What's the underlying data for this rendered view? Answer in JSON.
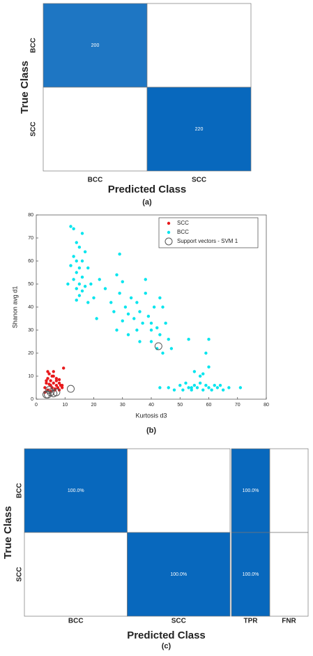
{
  "chart_data": [
    {
      "type": "confusion_matrix",
      "caption": "(a)",
      "xlabel": "Predicted Class",
      "ylabel": "True Class",
      "rows": [
        "BCC",
        "SCC"
      ],
      "columns": [
        "BCC",
        "SCC"
      ],
      "values": [
        [
          200,
          null
        ],
        [
          null,
          220
        ]
      ],
      "color": "#0868bd"
    },
    {
      "type": "scatter",
      "caption": "(b)",
      "xlabel": "Kurtosis d3",
      "ylabel": "Shanon avg d1",
      "xlim": [
        0,
        80
      ],
      "xticks": [
        0,
        10,
        20,
        30,
        40,
        50,
        60,
        70,
        80
      ],
      "ylim": [
        0,
        80
      ],
      "yticks": [
        0,
        10,
        20,
        30,
        40,
        50,
        60,
        70,
        80
      ],
      "legend": "northeast",
      "series": [
        {
          "name": "SCC",
          "color": "#e8191c",
          "marker": "dot",
          "x": [
            3,
            3.5,
            4,
            4,
            4.5,
            5,
            5,
            5.5,
            6,
            6,
            6.5,
            7,
            7,
            7.5,
            8,
            8,
            8.5,
            9,
            9.5,
            3,
            4,
            5,
            6,
            7,
            8,
            4.5,
            5.5,
            6.5,
            3.5,
            9
          ],
          "values": [
            5,
            7,
            4,
            9,
            11,
            6,
            8,
            5,
            7,
            10,
            4,
            6,
            9,
            5,
            7,
            4,
            6,
            5,
            13.5,
            3,
            12,
            3.5,
            12,
            8,
            8.5,
            6.5,
            10,
            4.5,
            8,
            6
          ]
        },
        {
          "name": "BCC",
          "color": "#00e5ee",
          "marker": "dot",
          "x": [
            12,
            13,
            16,
            14,
            15,
            17,
            13,
            14,
            16,
            12,
            15,
            18,
            14,
            16,
            13,
            11,
            15,
            17,
            14,
            16,
            15,
            14,
            19,
            18,
            29,
            22,
            20,
            21,
            24,
            26,
            27,
            28,
            29,
            30,
            31,
            32,
            33,
            34,
            35,
            36,
            37,
            38,
            38,
            39,
            40,
            41,
            42,
            43,
            44,
            45,
            46,
            44,
            47,
            28,
            30,
            32,
            35,
            36,
            40,
            42,
            53,
            43,
            40,
            46,
            48,
            50,
            51,
            52,
            53,
            54,
            55,
            56,
            57,
            58,
            59,
            60,
            61,
            62,
            63,
            65,
            67,
            71,
            58,
            59,
            60,
            55,
            57,
            60,
            43,
            64,
            54
          ],
          "values": [
            75,
            74,
            72,
            68,
            66,
            64,
            62,
            60,
            60,
            58,
            57,
            57,
            55,
            53,
            52,
            50,
            50,
            49,
            48,
            47,
            45,
            43,
            50,
            42,
            63,
            52,
            44,
            35,
            48,
            42,
            38,
            54,
            46,
            51,
            40,
            37,
            44,
            35,
            42,
            38,
            33,
            46,
            52,
            36,
            30,
            40,
            31,
            28,
            40,
            33,
            26,
            20,
            22,
            30,
            34,
            28,
            30,
            25,
            25,
            22,
            26,
            44,
            33,
            5,
            4,
            6,
            4,
            7,
            5,
            4,
            6,
            5,
            7,
            4,
            6,
            5,
            4,
            6,
            5,
            4,
            5,
            5,
            11,
            20,
            14,
            12,
            10,
            26,
            5,
            6,
            5
          ]
        },
        {
          "name": "Support vectors - SVM 1",
          "color": "#555555",
          "marker": "open-circle",
          "x": [
            3.5,
            4,
            4.5,
            5,
            6,
            7,
            12,
            42.5
          ],
          "values": [
            2,
            2,
            4,
            3,
            2.5,
            3,
            4.5,
            23
          ]
        }
      ]
    },
    {
      "type": "confusion_matrix",
      "caption": "(c)",
      "xlabel": "Predicted Class",
      "ylabel": "True Class",
      "rows": [
        "BCC",
        "SCC"
      ],
      "columns": [
        "BCC",
        "SCC"
      ],
      "values": [
        [
          100,
          null
        ],
        [
          null,
          100
        ]
      ],
      "value_labels": [
        [
          "100.0%",
          null
        ],
        [
          null,
          "100.0%"
        ]
      ],
      "color": "#0868bd",
      "summary": {
        "columns": [
          "TPR",
          "FNR"
        ],
        "values": [
          [
            100,
            null
          ],
          [
            100,
            null
          ]
        ],
        "value_labels": [
          [
            "100.0%",
            null
          ],
          [
            "100.0%",
            null
          ]
        ]
      }
    }
  ]
}
